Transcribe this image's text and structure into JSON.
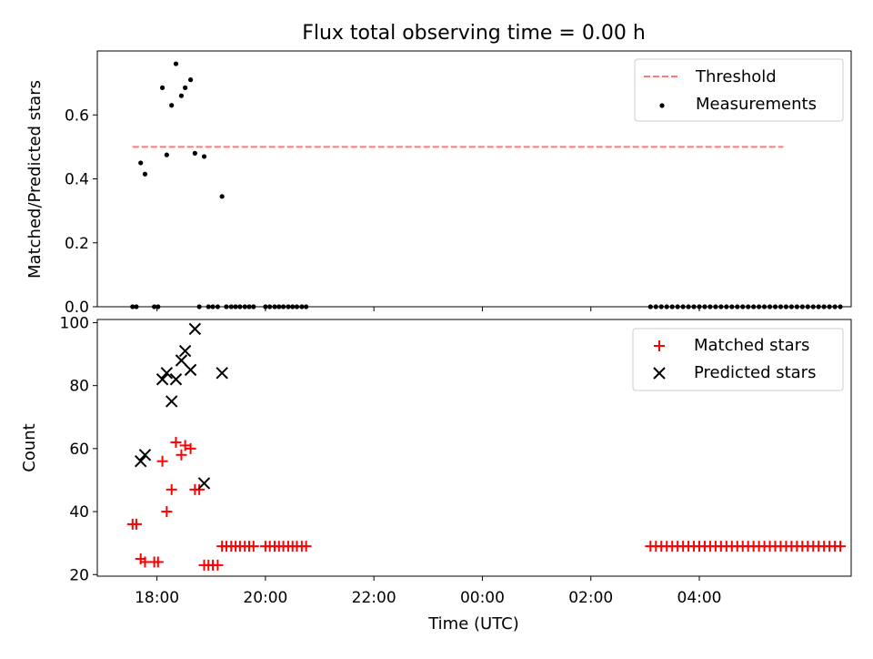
{
  "title": "Flux total observing time = 0.00 h",
  "chart_data": [
    {
      "type": "scatter",
      "ylabel": "Matched/Predicted stars",
      "xlim": [
        -1.1,
        12.8
      ],
      "ylim": [
        0,
        0.8
      ],
      "yticks": [
        "0.0",
        "0.2",
        "0.4",
        "0.6"
      ],
      "ytick_values": [
        0,
        0.2,
        0.4,
        0.6
      ],
      "grid": false,
      "legend": "top-right",
      "threshold": {
        "name": "Threshold",
        "y": 0.5,
        "x_range": [
          -0.45,
          11.55
        ],
        "color": "#ff7777"
      },
      "series": [
        {
          "name": "Measurements",
          "color": "#000000",
          "points": [
            [
              -0.45,
              0
            ],
            [
              -0.38,
              0
            ],
            [
              -0.3,
              0.45
            ],
            [
              -0.22,
              0.415
            ],
            [
              -0.05,
              0
            ],
            [
              0.02,
              0
            ],
            [
              0.1,
              0.685
            ],
            [
              0.18,
              0.475
            ],
            [
              0.27,
              0.63
            ],
            [
              0.35,
              0.76
            ],
            [
              0.45,
              0.66
            ],
            [
              0.52,
              0.685
            ],
            [
              0.62,
              0.71
            ],
            [
              0.7,
              0.48
            ],
            [
              0.78,
              0
            ],
            [
              0.87,
              0.47
            ],
            [
              0.95,
              0
            ],
            [
              1.03,
              0
            ],
            [
              1.12,
              0
            ],
            [
              1.2,
              0.345
            ],
            [
              1.28,
              0
            ],
            [
              1.37,
              0
            ],
            [
              1.45,
              0
            ],
            [
              1.53,
              0
            ],
            [
              1.62,
              0
            ],
            [
              1.7,
              0
            ],
            [
              1.78,
              0
            ],
            [
              2.0,
              0
            ],
            [
              2.08,
              0
            ],
            [
              2.17,
              0
            ],
            [
              2.25,
              0
            ],
            [
              2.33,
              0
            ],
            [
              2.42,
              0
            ],
            [
              2.5,
              0
            ],
            [
              2.58,
              0
            ],
            [
              2.67,
              0
            ],
            [
              2.75,
              0
            ],
            [
              9.1,
              0
            ],
            [
              9.2,
              0
            ],
            [
              9.3,
              0
            ],
            [
              9.4,
              0
            ],
            [
              9.5,
              0
            ],
            [
              9.6,
              0
            ],
            [
              9.7,
              0
            ],
            [
              9.8,
              0
            ],
            [
              9.9,
              0
            ],
            [
              10.0,
              0
            ],
            [
              10.1,
              0
            ],
            [
              10.2,
              0
            ],
            [
              10.3,
              0
            ],
            [
              10.4,
              0
            ],
            [
              10.5,
              0
            ],
            [
              10.6,
              0
            ],
            [
              10.7,
              0
            ],
            [
              10.8,
              0
            ],
            [
              10.9,
              0
            ],
            [
              11.0,
              0
            ],
            [
              11.1,
              0
            ],
            [
              11.2,
              0
            ],
            [
              11.3,
              0
            ],
            [
              11.4,
              0
            ],
            [
              11.5,
              0
            ],
            [
              11.6,
              0
            ],
            [
              11.7,
              0
            ],
            [
              11.8,
              0
            ],
            [
              11.9,
              0
            ],
            [
              12.0,
              0
            ],
            [
              12.1,
              0
            ],
            [
              12.2,
              0
            ],
            [
              12.3,
              0
            ],
            [
              12.4,
              0
            ],
            [
              12.5,
              0
            ],
            [
              12.6,
              0
            ]
          ]
        }
      ]
    },
    {
      "type": "scatter",
      "xlabel": "Time (UTC)",
      "ylabel": "Count",
      "xlim": [
        -1.1,
        12.8
      ],
      "ylim": [
        19.5,
        101
      ],
      "xticks": [
        "18:00",
        "20:00",
        "22:00",
        "00:00",
        "02:00",
        "04:00"
      ],
      "xtick_values": [
        0,
        2,
        4,
        6,
        8,
        10
      ],
      "yticks": [
        "20",
        "40",
        "60",
        "80",
        "100"
      ],
      "ytick_values": [
        20,
        40,
        60,
        80,
        100
      ],
      "grid": false,
      "legend": "top-right",
      "series": [
        {
          "name": "Matched stars",
          "marker": "plus",
          "color": "#ff0000",
          "points": [
            [
              -0.45,
              36
            ],
            [
              -0.38,
              36
            ],
            [
              -0.3,
              25
            ],
            [
              -0.22,
              24
            ],
            [
              -0.05,
              24
            ],
            [
              0.02,
              24
            ],
            [
              0.1,
              56
            ],
            [
              0.18,
              40
            ],
            [
              0.27,
              47
            ],
            [
              0.35,
              62
            ],
            [
              0.45,
              58
            ],
            [
              0.52,
              61
            ],
            [
              0.62,
              60
            ],
            [
              0.7,
              47
            ],
            [
              0.78,
              47
            ],
            [
              0.87,
              23
            ],
            [
              0.95,
              23
            ],
            [
              1.03,
              23
            ],
            [
              1.12,
              23
            ],
            [
              1.2,
              29
            ],
            [
              1.28,
              29
            ],
            [
              1.37,
              29
            ],
            [
              1.45,
              29
            ],
            [
              1.53,
              29
            ],
            [
              1.62,
              29
            ],
            [
              1.7,
              29
            ],
            [
              1.78,
              29
            ],
            [
              2.0,
              29
            ],
            [
              2.08,
              29
            ],
            [
              2.17,
              29
            ],
            [
              2.25,
              29
            ],
            [
              2.33,
              29
            ],
            [
              2.42,
              29
            ],
            [
              2.5,
              29
            ],
            [
              2.58,
              29
            ],
            [
              2.67,
              29
            ],
            [
              2.75,
              29
            ],
            [
              9.1,
              29
            ],
            [
              9.2,
              29
            ],
            [
              9.3,
              29
            ],
            [
              9.4,
              29
            ],
            [
              9.5,
              29
            ],
            [
              9.6,
              29
            ],
            [
              9.7,
              29
            ],
            [
              9.8,
              29
            ],
            [
              9.9,
              29
            ],
            [
              10.0,
              29
            ],
            [
              10.1,
              29
            ],
            [
              10.2,
              29
            ],
            [
              10.3,
              29
            ],
            [
              10.4,
              29
            ],
            [
              10.5,
              29
            ],
            [
              10.6,
              29
            ],
            [
              10.7,
              29
            ],
            [
              10.8,
              29
            ],
            [
              10.9,
              29
            ],
            [
              11.0,
              29
            ],
            [
              11.1,
              29
            ],
            [
              11.2,
              29
            ],
            [
              11.3,
              29
            ],
            [
              11.4,
              29
            ],
            [
              11.5,
              29
            ],
            [
              11.6,
              29
            ],
            [
              11.7,
              29
            ],
            [
              11.8,
              29
            ],
            [
              11.9,
              29
            ],
            [
              12.0,
              29
            ],
            [
              12.1,
              29
            ],
            [
              12.2,
              29
            ],
            [
              12.3,
              29
            ],
            [
              12.4,
              29
            ],
            [
              12.5,
              29
            ],
            [
              12.6,
              29
            ]
          ]
        },
        {
          "name": "Predicted stars",
          "marker": "x",
          "color": "#000000",
          "points": [
            [
              -0.3,
              56
            ],
            [
              -0.22,
              58
            ],
            [
              0.1,
              82
            ],
            [
              0.18,
              84
            ],
            [
              0.27,
              75
            ],
            [
              0.35,
              82
            ],
            [
              0.45,
              88
            ],
            [
              0.52,
              91
            ],
            [
              0.62,
              85
            ],
            [
              0.7,
              98
            ],
            [
              0.87,
              49
            ],
            [
              1.2,
              84
            ]
          ]
        }
      ]
    }
  ]
}
